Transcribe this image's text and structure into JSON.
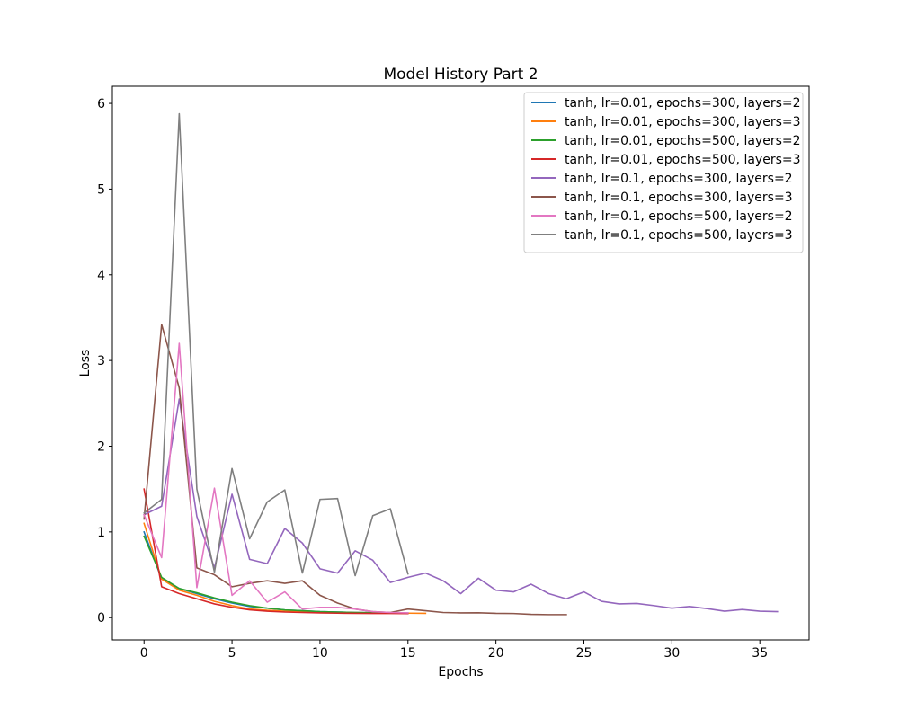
{
  "chart_data": {
    "type": "line",
    "title": "Model History Part 2",
    "xlabel": "Epochs",
    "ylabel": "Loss",
    "xlim": [
      -1.8,
      37.8
    ],
    "ylim": [
      -0.26,
      6.2
    ],
    "xticks": [
      0,
      5,
      10,
      15,
      20,
      25,
      30,
      35
    ],
    "yticks": [
      0,
      1,
      2,
      3,
      4,
      5,
      6
    ],
    "grid": false,
    "legend_position": "top-right",
    "series": [
      {
        "name": "tanh, lr=0.01, epochs=300, layers=2",
        "color": "#1f77b4",
        "x": [
          0,
          1,
          2,
          3,
          4,
          5,
          6,
          7,
          8,
          9,
          10,
          11,
          12,
          13,
          14,
          15
        ],
        "y": [
          1.0,
          0.45,
          0.34,
          0.28,
          0.22,
          0.17,
          0.13,
          0.11,
          0.09,
          0.08,
          0.07,
          0.065,
          0.06,
          0.057,
          0.055,
          0.053
        ]
      },
      {
        "name": "tanh, lr=0.01, epochs=300, layers=3",
        "color": "#ff7f0e",
        "x": [
          0,
          1,
          2,
          3,
          4,
          5,
          6,
          7,
          8,
          9,
          10,
          11,
          12,
          13,
          14,
          15,
          16
        ],
        "y": [
          1.1,
          0.45,
          0.32,
          0.26,
          0.19,
          0.14,
          0.1,
          0.085,
          0.075,
          0.07,
          0.065,
          0.06,
          0.058,
          0.056,
          0.054,
          0.052,
          0.05
        ]
      },
      {
        "name": "tanh, lr=0.01, epochs=500, layers=2",
        "color": "#2ca02c",
        "x": [
          0,
          1,
          2,
          3,
          4,
          5,
          6,
          7,
          8,
          9,
          10,
          11,
          12,
          13,
          14,
          15
        ],
        "y": [
          0.95,
          0.47,
          0.34,
          0.29,
          0.23,
          0.18,
          0.14,
          0.11,
          0.09,
          0.08,
          0.07,
          0.065,
          0.06,
          0.058,
          0.055,
          0.052
        ]
      },
      {
        "name": "tanh, lr=0.01, epochs=500, layers=3",
        "color": "#d62728",
        "x": [
          0,
          1,
          2,
          3,
          4,
          5,
          6,
          7,
          8,
          9,
          10,
          11,
          12,
          13,
          14,
          15
        ],
        "y": [
          1.5,
          0.36,
          0.28,
          0.22,
          0.16,
          0.12,
          0.09,
          0.075,
          0.065,
          0.06,
          0.055,
          0.052,
          0.05,
          0.049,
          0.048,
          0.047
        ]
      },
      {
        "name": "tanh, lr=0.1, epochs=300, layers=2",
        "color": "#9467bd",
        "x": [
          0,
          1,
          2,
          3,
          4,
          5,
          6,
          7,
          8,
          9,
          10,
          11,
          12,
          13,
          14,
          15,
          16,
          17,
          18,
          19,
          20,
          21,
          22,
          23,
          24,
          25,
          26,
          27,
          28,
          29,
          30,
          31,
          32,
          33,
          34,
          35,
          36
        ],
        "y": [
          1.2,
          1.3,
          2.55,
          1.18,
          0.58,
          1.44,
          0.68,
          0.63,
          1.04,
          0.87,
          0.57,
          0.52,
          0.78,
          0.67,
          0.41,
          0.47,
          0.52,
          0.43,
          0.28,
          0.46,
          0.32,
          0.3,
          0.39,
          0.28,
          0.22,
          0.3,
          0.19,
          0.16,
          0.165,
          0.14,
          0.11,
          0.13,
          0.105,
          0.075,
          0.095,
          0.075,
          0.07
        ]
      },
      {
        "name": "tanh, lr=0.1, epochs=300, layers=3",
        "color": "#8c564b",
        "x": [
          0,
          1,
          2,
          3,
          4,
          5,
          6,
          7,
          8,
          9,
          10,
          11,
          12,
          13,
          14,
          15,
          16,
          17,
          18,
          19,
          20,
          21,
          22,
          23,
          24
        ],
        "y": [
          1.15,
          3.42,
          2.68,
          0.58,
          0.5,
          0.36,
          0.4,
          0.43,
          0.4,
          0.43,
          0.26,
          0.17,
          0.1,
          0.07,
          0.06,
          0.1,
          0.08,
          0.06,
          0.055,
          0.057,
          0.05,
          0.048,
          0.038,
          0.035,
          0.035
        ]
      },
      {
        "name": "tanh, lr=0.1, epochs=500, layers=2",
        "color": "#e377c2",
        "x": [
          0,
          1,
          2,
          3,
          4,
          5,
          6,
          7,
          8,
          9,
          10,
          11,
          12,
          13,
          14,
          15
        ],
        "y": [
          1.2,
          0.7,
          3.2,
          0.35,
          1.51,
          0.26,
          0.43,
          0.18,
          0.3,
          0.1,
          0.12,
          0.12,
          0.1,
          0.07,
          0.06,
          0.055
        ]
      },
      {
        "name": "tanh, lr=0.1, epochs=500, layers=3",
        "color": "#7f7f7f",
        "x": [
          0,
          1,
          2,
          3,
          4,
          5,
          6,
          7,
          8,
          9,
          10,
          11,
          12,
          13,
          14,
          15
        ],
        "y": [
          1.22,
          1.38,
          5.88,
          1.5,
          0.53,
          1.74,
          0.92,
          1.35,
          1.49,
          0.52,
          1.38,
          1.39,
          0.49,
          1.19,
          1.27,
          0.51
        ]
      }
    ]
  }
}
